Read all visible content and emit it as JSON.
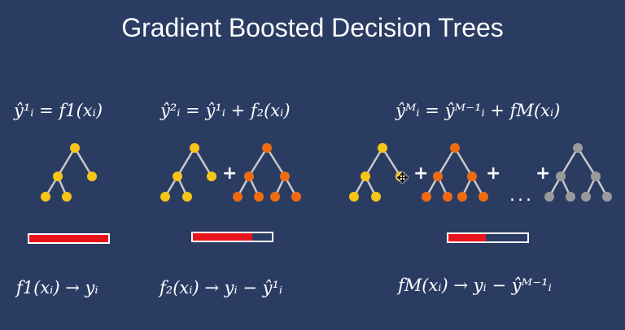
{
  "slide": {
    "title": "Gradient Boosted Decision Trees"
  },
  "formulas_top": [
    {
      "id": "f1",
      "text": "ŷ¹ᵢ = f1(xᵢ)"
    },
    {
      "id": "f2",
      "text": "ŷ²ᵢ = ŷ¹ᵢ + f₂(xᵢ)"
    },
    {
      "id": "fM",
      "text": "ŷᴹᵢ = ŷᴹ⁻¹ᵢ + fM(xᵢ)"
    }
  ],
  "formulas_bottom": [
    {
      "id": "t1",
      "text": "f1(xᵢ) → yᵢ"
    },
    {
      "id": "t2",
      "text": "f₂(xᵢ) → yᵢ − ŷ¹ᵢ"
    },
    {
      "id": "tM",
      "text": "fM(xᵢ) → yᵢ − ŷᴹ⁻¹ᵢ"
    }
  ],
  "operators": {
    "plus": "+",
    "ellipsis": "..."
  },
  "error_bars": [
    {
      "id": "bar-1",
      "fill_fraction": 1.0
    },
    {
      "id": "bar-2",
      "fill_fraction": 0.75
    },
    {
      "id": "bar-M",
      "fill_fraction": 0.47
    }
  ],
  "colors": {
    "background": "#2b3c63",
    "tree_yellow": "#f5c518",
    "tree_orange": "#f06a10",
    "tree_gray": "#9a9a9a",
    "edge": "#c8c8c8",
    "bar_fill": "#e8141c",
    "text": "#ffffff"
  },
  "icons": {
    "cursor": "move-cursor-icon"
  }
}
